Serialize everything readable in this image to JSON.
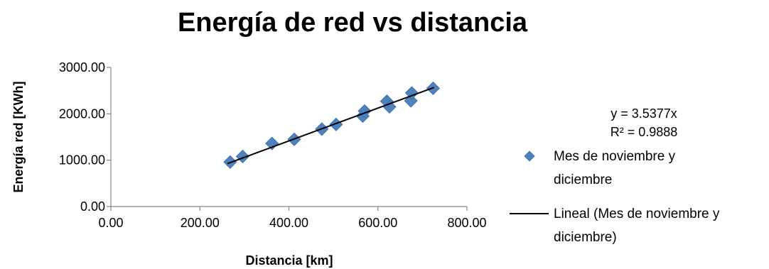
{
  "chart_data": {
    "type": "scatter",
    "title": "Energía de red vs distancia",
    "xlabel": "Distancia [km]",
    "ylabel": "Energía red [KWh]",
    "xlim": [
      0,
      800
    ],
    "ylim": [
      0,
      3000
    ],
    "x_ticks": [
      "0.00",
      "200.00",
      "400.00",
      "600.00",
      "800.00"
    ],
    "y_ticks": [
      "0.00",
      "1000.00",
      "2000.00",
      "3000.00"
    ],
    "grid": false,
    "legend_position": "right",
    "series": [
      {
        "name": "Mes de noviembre y diciembre",
        "marker": "diamond",
        "color": "#4F81BD",
        "points": [
          {
            "x": 268,
            "y": 960
          },
          {
            "x": 296,
            "y": 1080
          },
          {
            "x": 362,
            "y": 1360
          },
          {
            "x": 412,
            "y": 1450
          },
          {
            "x": 474,
            "y": 1670
          },
          {
            "x": 506,
            "y": 1770
          },
          {
            "x": 566,
            "y": 1950
          },
          {
            "x": 570,
            "y": 2060
          },
          {
            "x": 620,
            "y": 2270
          },
          {
            "x": 626,
            "y": 2150
          },
          {
            "x": 674,
            "y": 2280
          },
          {
            "x": 676,
            "y": 2450
          },
          {
            "x": 724,
            "y": 2550
          }
        ]
      }
    ],
    "trendline": {
      "name": "Lineal (Mes de noviembre y diciembre)",
      "type": "linear",
      "slope": 3.5377,
      "intercept": 0,
      "x_range": [
        262,
        726
      ],
      "color": "#000000",
      "equation": "y = 3.5377x",
      "r_squared": "R² = 0.9888"
    },
    "legend": [
      {
        "name_lines": [
          "Mes de noviembre y",
          "diciembre"
        ],
        "marker": "diamond"
      },
      {
        "name_lines": [
          "Lineal (Mes de noviembre y",
          "diciembre)"
        ],
        "marker": "line"
      }
    ]
  }
}
